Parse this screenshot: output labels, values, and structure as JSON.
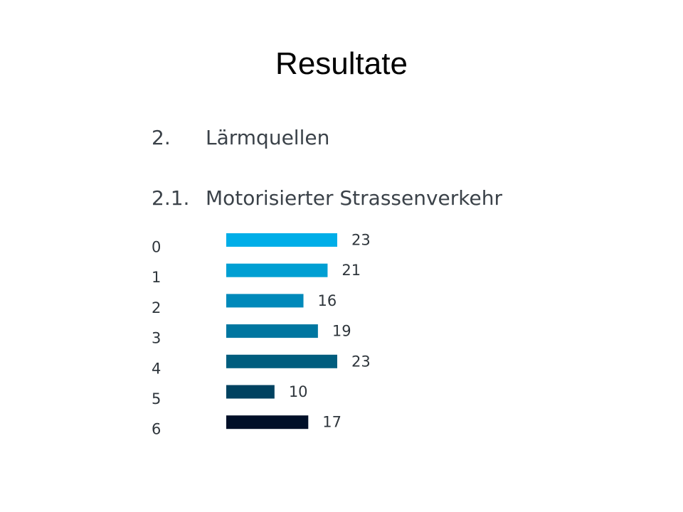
{
  "slide": {
    "title": "Resultate"
  },
  "section": {
    "number": "2.",
    "title": "Lärmquellen"
  },
  "subsection": {
    "number": "2.1.",
    "title": "Motorisierter Strassenverkehr"
  },
  "chart_data": {
    "type": "bar",
    "orientation": "horizontal",
    "categories": [
      "0",
      "1",
      "2",
      "3",
      "4",
      "5",
      "6"
    ],
    "values": [
      23,
      21,
      16,
      19,
      23,
      10,
      17
    ],
    "colors": [
      "#00aee8",
      "#009fd3",
      "#0089ba",
      "#0076a0",
      "#005d7e",
      "#004260",
      "#000f28"
    ],
    "data_labels": true,
    "grid": false,
    "legend": "none"
  }
}
